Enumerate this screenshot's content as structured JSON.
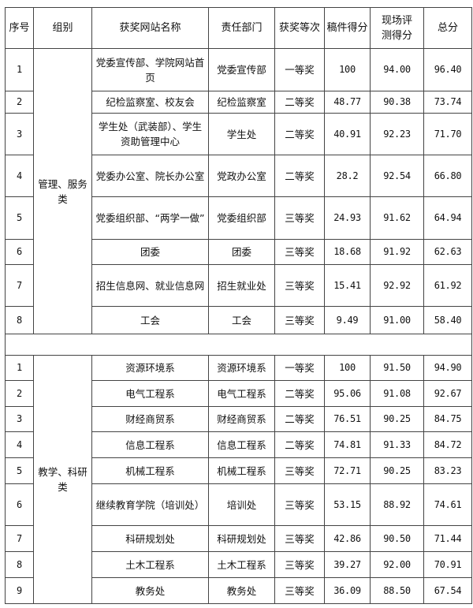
{
  "headers": [
    "序号",
    "组别",
    "获奖网站名称",
    "责任部门",
    "获奖等次",
    "稿件得分",
    "现场评测得分",
    "总分"
  ],
  "groups": [
    {
      "name": "管理、服务类",
      "rows": [
        {
          "no": "1",
          "site": "党委宣传部、学院网站首页",
          "dept": "党委宣传部",
          "award": "一等奖",
          "article": "100",
          "onsite": "94.00",
          "total": "96.40"
        },
        {
          "no": "2",
          "site": "纪检监察室、校友会",
          "dept": "纪检监察室",
          "award": "二等奖",
          "article": "48.77",
          "onsite": "90.38",
          "total": "73.74"
        },
        {
          "no": "3",
          "site": "学生处（武装部）、学生资助管理中心",
          "dept": "学生处",
          "award": "二等奖",
          "article": "40.91",
          "onsite": "92.23",
          "total": "71.70"
        },
        {
          "no": "4",
          "site": "党委办公室、院长办公室",
          "dept": "党政办公室",
          "award": "二等奖",
          "article": "28.2",
          "onsite": "92.54",
          "total": "66.80"
        },
        {
          "no": "5",
          "site": "党委组织部、“两学一做”",
          "dept": "党委组织部",
          "award": "三等奖",
          "article": "24.93",
          "onsite": "91.62",
          "total": "64.94"
        },
        {
          "no": "6",
          "site": "团委",
          "dept": "团委",
          "award": "三等奖",
          "article": "18.68",
          "onsite": "91.92",
          "total": "62.63"
        },
        {
          "no": "7",
          "site": "招生信息网、就业信息网",
          "dept": "招生就业处",
          "award": "三等奖",
          "article": "15.41",
          "onsite": "92.92",
          "total": "61.92"
        },
        {
          "no": "8",
          "site": "工会",
          "dept": "工会",
          "award": "三等奖",
          "article": "9.49",
          "onsite": "91.00",
          "total": "58.40"
        }
      ]
    },
    {
      "name": "教学、科研类",
      "rows": [
        {
          "no": "1",
          "site": "资源环境系",
          "dept": "资源环境系",
          "award": "一等奖",
          "article": "100",
          "onsite": "91.50",
          "total": "94.90"
        },
        {
          "no": "2",
          "site": "电气工程系",
          "dept": "电气工程系",
          "award": "二等奖",
          "article": "95.06",
          "onsite": "91.08",
          "total": "92.67"
        },
        {
          "no": "3",
          "site": "财经商贸系",
          "dept": "财经商贸系",
          "award": "二等奖",
          "article": "76.51",
          "onsite": "90.25",
          "total": "84.75"
        },
        {
          "no": "4",
          "site": "信息工程系",
          "dept": "信息工程系",
          "award": "二等奖",
          "article": "74.81",
          "onsite": "91.33",
          "total": "84.72"
        },
        {
          "no": "5",
          "site": "机械工程系",
          "dept": "机械工程系",
          "award": "三等奖",
          "article": "72.71",
          "onsite": "90.25",
          "total": "83.23"
        },
        {
          "no": "6",
          "site": "继续教育学院（培训处）",
          "dept": "培训处",
          "award": "三等奖",
          "article": "53.15",
          "onsite": "88.92",
          "total": "74.61"
        },
        {
          "no": "7",
          "site": "科研规划处",
          "dept": "科研规划处",
          "award": "三等奖",
          "article": "42.86",
          "onsite": "90.50",
          "total": "71.44"
        },
        {
          "no": "8",
          "site": "土木工程系",
          "dept": "土木工程系",
          "award": "三等奖",
          "article": "39.27",
          "onsite": "92.00",
          "total": "70.91"
        },
        {
          "no": "9",
          "site": "教务处",
          "dept": "教务处",
          "award": "三等奖",
          "article": "36.09",
          "onsite": "88.50",
          "total": "67.54"
        }
      ]
    }
  ]
}
